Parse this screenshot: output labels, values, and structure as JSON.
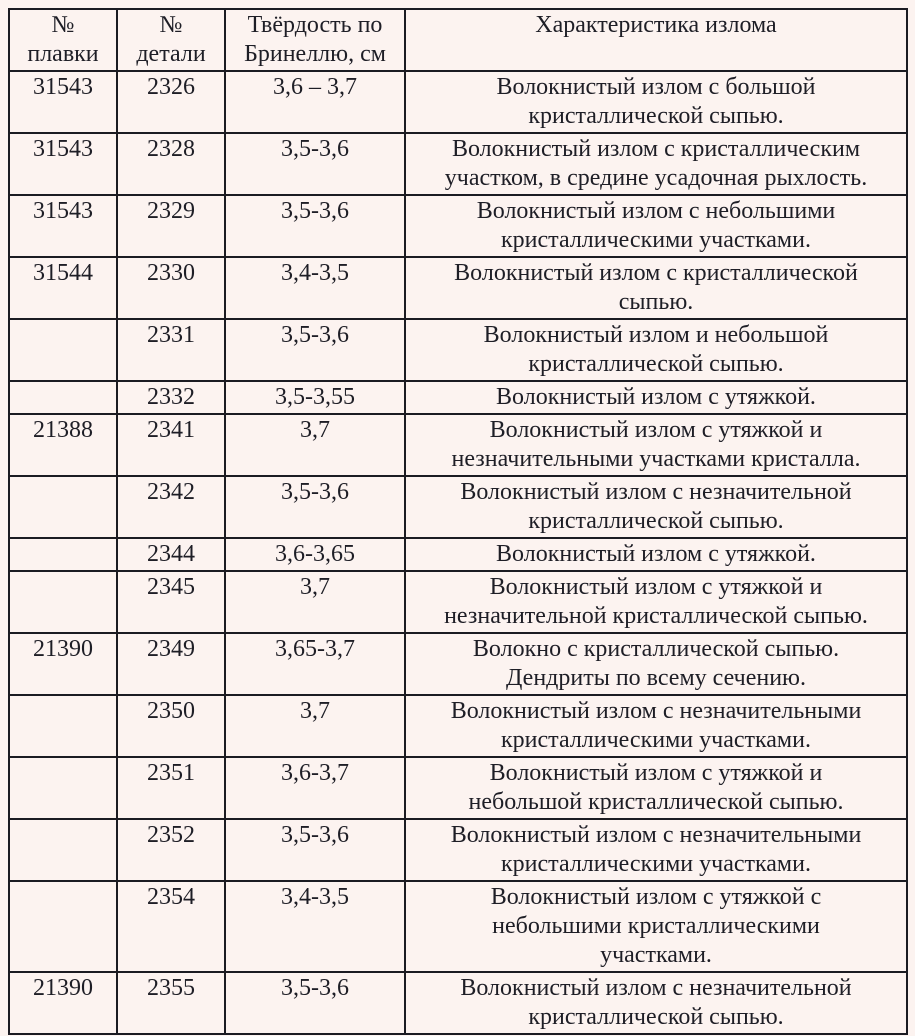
{
  "document": {
    "language": "ru",
    "background_color": "#fcf3f0",
    "text_color": "#1e1e26",
    "border_color": "#1b1b22"
  },
  "table": {
    "columns": [
      {
        "key": "melt",
        "label": "№\nплавки"
      },
      {
        "key": "part",
        "label": "№\nдетали"
      },
      {
        "key": "hardness",
        "label": "Твёрдость по\nБринеллю, см"
      },
      {
        "key": "description",
        "label": "Характеристика излома"
      }
    ],
    "rows": [
      {
        "melt": "31543",
        "part": "2326",
        "hardness": "3,6 – 3,7",
        "description": "Волокнистый излом с большой\nкристаллической сыпью."
      },
      {
        "melt": "31543",
        "part": "2328",
        "hardness": "3,5-3,6",
        "description": "Волокнистый излом с кристаллическим\nучастком, в средине усадочная рыхлость."
      },
      {
        "melt": "31543",
        "part": "2329",
        "hardness": "3,5-3,6",
        "description": "Волокнистый излом с небольшими\nкристаллическими участками."
      },
      {
        "melt": "31544",
        "part": "2330",
        "hardness": "3,4-3,5",
        "description": "Волокнистый излом с кристаллической\nсыпью."
      },
      {
        "melt": "",
        "part": "2331",
        "hardness": "3,5-3,6",
        "description": "Волокнистый излом и небольшой\nкристаллической сыпью."
      },
      {
        "melt": "",
        "part": "2332",
        "hardness": "3,5-3,55",
        "description": "Волокнистый излом с утяжкой."
      },
      {
        "melt": "21388",
        "part": "2341",
        "hardness": "3,7",
        "description": "Волокнистый излом с утяжкой и\nнезначительными участками кристалла."
      },
      {
        "melt": "",
        "part": "2342",
        "hardness": "3,5-3,6",
        "description": "Волокнистый излом с незначительной\nкристаллической сыпью."
      },
      {
        "melt": "",
        "part": "2344",
        "hardness": "3,6-3,65",
        "description": "Волокнистый излом с утяжкой."
      },
      {
        "melt": "",
        "part": "2345",
        "hardness": "3,7",
        "description": "Волокнистый излом с утяжкой и\nнезначительной кристаллической сыпью."
      },
      {
        "melt": "21390",
        "part": "2349",
        "hardness": "3,65-3,7",
        "description": "Волокно с кристаллической сыпью.\nДендриты по всему сечению."
      },
      {
        "melt": "",
        "part": "2350",
        "hardness": "3,7",
        "description": "Волокнистый излом с незначительными\nкристаллическими участками."
      },
      {
        "melt": "",
        "part": "2351",
        "hardness": "3,6-3,7",
        "description": "Волокнистый излом с утяжкой и\nнебольшой кристаллической сыпью."
      },
      {
        "melt": "",
        "part": "2352",
        "hardness": "3,5-3,6",
        "description": "Волокнистый излом с незначительными\nкристаллическими участками."
      },
      {
        "melt": "",
        "part": "2354",
        "hardness": "3,4-3,5",
        "description": "Волокнистый излом с утяжкой с\nнебольшими кристаллическими\nучастками."
      },
      {
        "melt": "21390",
        "part": "2355",
        "hardness": "3,5-3,6",
        "description": "Волокнистый излом с незначительной\nкристаллической сыпью."
      }
    ]
  }
}
